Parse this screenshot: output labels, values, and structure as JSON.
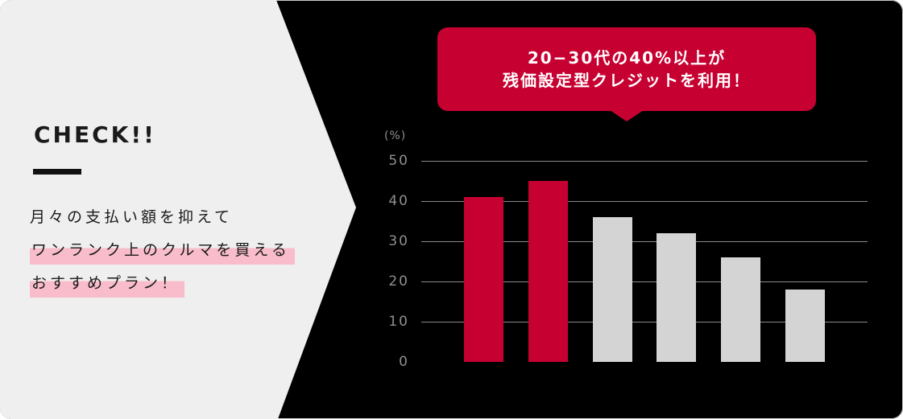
{
  "left_panel": {
    "heading": "CHECK!!",
    "lines": [
      {
        "text": "月々の支払い額を抑えて",
        "highlight": false
      },
      {
        "text": "ワンランク上のクルマを買える",
        "highlight": true
      },
      {
        "text": "おすすめプラン！",
        "highlight": true
      }
    ]
  },
  "callout": {
    "line1": "20−30代の40%以上が",
    "line2": "残価設定型クレジットを利用！"
  },
  "chart_data": {
    "type": "bar",
    "title": "",
    "xlabel": "",
    "ylabel": "(%)",
    "categories": [
      "",
      "",
      "",
      "",
      "",
      ""
    ],
    "values": [
      41,
      45,
      36,
      32,
      26,
      18
    ],
    "bar_colors": [
      "#c70032",
      "#c70032",
      "#d4d4d4",
      "#d4d4d4",
      "#d4d4d4",
      "#d4d4d4"
    ],
    "highlighted_bars": [
      0,
      1
    ],
    "yticks": [
      50,
      40,
      30,
      20,
      10,
      0
    ],
    "ylim": [
      0,
      50
    ],
    "grid": true,
    "gridlines_at": [
      10,
      20,
      30,
      40,
      50
    ],
    "legend": false,
    "x_axis_labels_visible": false
  },
  "colors": {
    "accent_red": "#c70032",
    "bar_gray": "#d4d4d4",
    "panel_bg": "#efefef",
    "card_bg": "#000000",
    "highlight_pink": "#f8bcca",
    "axis_text": "#8f8f8f",
    "gridline": "#8a8a8a",
    "text_dark": "#1a1a1a",
    "callout_text": "#ffffff"
  }
}
